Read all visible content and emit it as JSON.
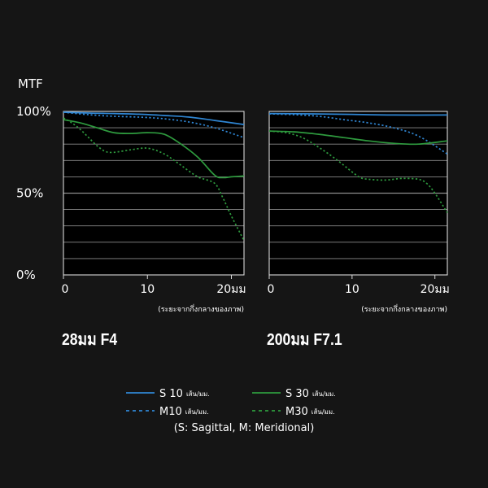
{
  "y_axis_title": "MTF",
  "y_tick_labels": [
    "100%",
    "50%",
    "0%"
  ],
  "x_caption": "(ระยะจากกึ่งกลางของภาพ)",
  "legend": {
    "s10": "S 10",
    "m10": "M10",
    "s30": "S 30",
    "m30": "M30",
    "unit": "เส้น/มม.",
    "note": "(S: Sagittal, M: Meridional)"
  },
  "colors": {
    "background": "#151515",
    "plot_background": "#000000",
    "grid": "#8a8a8a",
    "frame": "#d8d8d8",
    "text": "#ffffff",
    "blue": "#2f86d3",
    "green": "#2e9a3e"
  },
  "chart_data": [
    {
      "type": "line",
      "title": "28มม F4",
      "ylabel": "MTF",
      "xlabel": "(ระยะจากกึ่งกลางของภาพ)",
      "xlim": [
        0,
        21.5
      ],
      "ylim": [
        0,
        100
      ],
      "x_ticks": [
        0,
        10,
        20
      ],
      "x_tick_labels": [
        "0",
        "10",
        "20มม"
      ],
      "y_ticks": [
        0,
        50,
        100
      ],
      "y_tick_labels": [
        "0%",
        "50%",
        "100%"
      ],
      "grid": true,
      "series": [
        {
          "name": "S 10",
          "color": "#2f86d3",
          "dash": "solid",
          "x": [
            0,
            3,
            6,
            9,
            12,
            15,
            18,
            21.5
          ],
          "y": [
            99.5,
            99,
            98.7,
            98.3,
            97.5,
            96.5,
            94.5,
            92
          ]
        },
        {
          "name": "M10",
          "color": "#2f86d3",
          "dash": "dotted",
          "x": [
            0,
            3,
            6,
            9,
            12,
            15,
            18,
            21.5
          ],
          "y": [
            99.5,
            98,
            97,
            96.5,
            95.5,
            93.5,
            90,
            84
          ]
        },
        {
          "name": "S 30",
          "color": "#2e9a3e",
          "dash": "solid",
          "x": [
            0,
            2,
            4,
            6,
            8,
            10,
            12,
            14,
            16,
            18,
            19,
            20,
            21.5
          ],
          "y": [
            95,
            93,
            90,
            87,
            86.5,
            87,
            86,
            80,
            72,
            61,
            59.5,
            60,
            60.5
          ]
        },
        {
          "name": "M30",
          "color": "#2e9a3e",
          "dash": "dotted",
          "x": [
            0,
            1,
            2,
            3,
            4,
            5,
            6,
            8,
            10,
            12,
            14,
            16,
            18,
            19,
            20,
            21.5
          ],
          "y": [
            96,
            93,
            89,
            84,
            79,
            75.5,
            75,
            76.5,
            77.5,
            74,
            67,
            60,
            56,
            47,
            36,
            21
          ]
        }
      ]
    },
    {
      "type": "line",
      "title": "200มม F7.1",
      "ylabel": "MTF",
      "xlabel": "(ระยะจากกึ่งกลางของภาพ)",
      "xlim": [
        0,
        21.5
      ],
      "ylim": [
        0,
        100
      ],
      "x_ticks": [
        0,
        10,
        20
      ],
      "x_tick_labels": [
        "0",
        "10",
        "20มม"
      ],
      "y_ticks": [
        0,
        50,
        100
      ],
      "y_tick_labels": [
        "0%",
        "50%",
        "100%"
      ],
      "grid": true,
      "series": [
        {
          "name": "S 10",
          "color": "#2f86d3",
          "dash": "solid",
          "x": [
            0,
            5,
            10,
            15,
            21.5
          ],
          "y": [
            98.7,
            98.5,
            98.2,
            97.8,
            97.8
          ]
        },
        {
          "name": "M10",
          "color": "#2f86d3",
          "dash": "dotted",
          "x": [
            0,
            3,
            6,
            9,
            12,
            15,
            18,
            21.5
          ],
          "y": [
            98.5,
            98,
            97,
            95,
            93,
            90,
            85,
            74
          ]
        },
        {
          "name": "S 30",
          "color": "#2e9a3e",
          "dash": "solid",
          "x": [
            0,
            3,
            6,
            9,
            12,
            15,
            18,
            21.5
          ],
          "y": [
            88,
            87.5,
            86,
            84,
            82,
            80.5,
            80,
            82
          ]
        },
        {
          "name": "M30",
          "color": "#2e9a3e",
          "dash": "dotted",
          "x": [
            0,
            2,
            4,
            6,
            8,
            10,
            11,
            12,
            14,
            16,
            18,
            19,
            20,
            21.5
          ],
          "y": [
            88,
            87,
            84,
            78,
            71,
            63,
            59.5,
            58.5,
            58,
            59,
            58.5,
            56,
            50,
            38
          ]
        }
      ]
    }
  ]
}
